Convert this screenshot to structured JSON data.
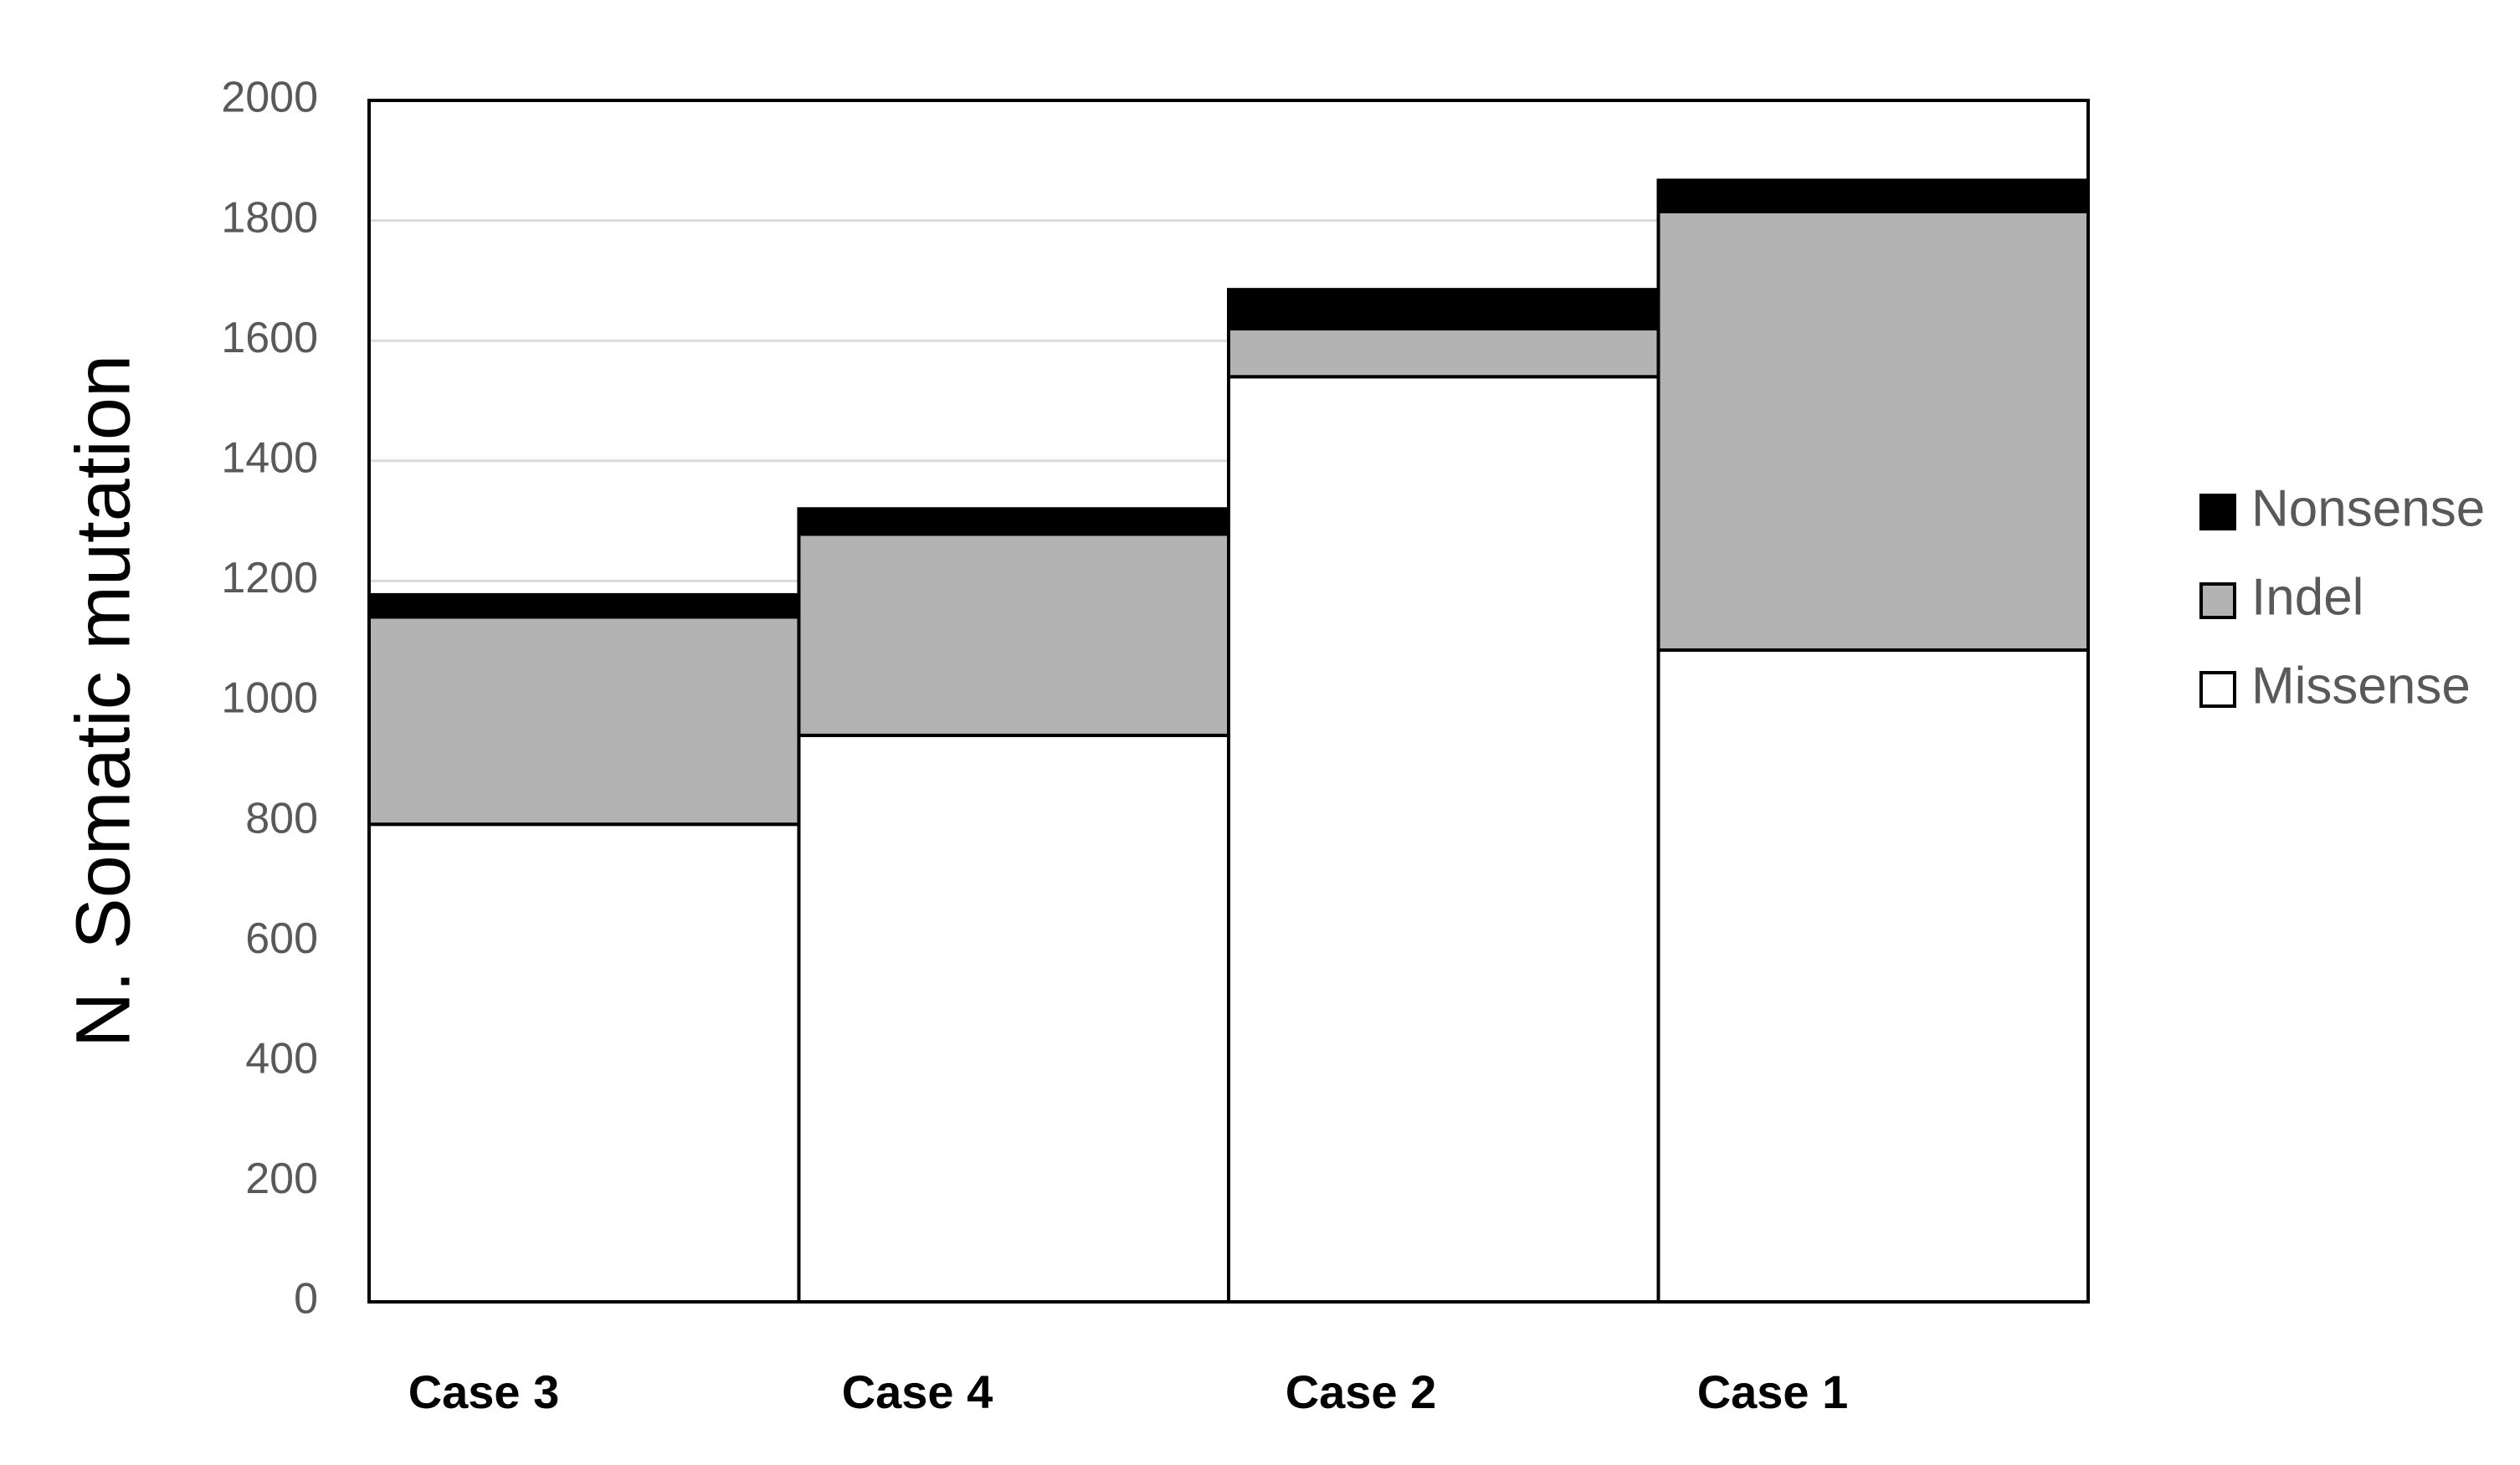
{
  "chart_data": {
    "type": "bar",
    "stacked": true,
    "title": "",
    "xlabel": "",
    "ylabel": "N. Somatic mutation",
    "categories": [
      "Case 3",
      "Case 4",
      "Case 2",
      "Case 1"
    ],
    "series": [
      {
        "name": "Missense",
        "color": "#ffffff",
        "values": [
          795,
          943,
          1540,
          1085
        ]
      },
      {
        "name": "Indel",
        "color": "#b3b3b3",
        "values": [
          345,
          335,
          80,
          730
        ]
      },
      {
        "name": "Nonsense",
        "color": "#000000",
        "values": [
          37,
          42,
          65,
          52
        ]
      }
    ],
    "ylim": [
      0,
      2000
    ],
    "yticks": [
      "0",
      "200",
      "400",
      "600",
      "800",
      "1000",
      "1200",
      "1400",
      "1600",
      "1800",
      "2000"
    ],
    "grid": true,
    "legend": {
      "position": "right",
      "order": [
        "Nonsense",
        "Indel",
        "Missense"
      ]
    }
  }
}
